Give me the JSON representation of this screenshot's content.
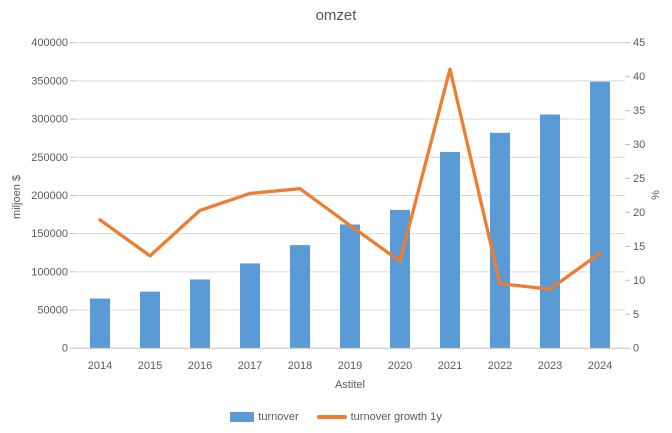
{
  "title": "omzet",
  "chart_data": {
    "type": "bar+line combo",
    "title": "omzet",
    "grid": true,
    "legend_position": "bottom",
    "x_axis": {
      "title": "Astitel",
      "categories": [
        "2014",
        "2015",
        "2016",
        "2017",
        "2018",
        "2019",
        "2020",
        "2021",
        "2022",
        "2023",
        "2024"
      ]
    },
    "left_axis": {
      "title": "miljoen $",
      "min": 0,
      "max": 400000,
      "step": 50000,
      "tick_labels": [
        "400000",
        "350000",
        "300000",
        "250000",
        "200000",
        "150000",
        "100000",
        "50000",
        "0"
      ]
    },
    "right_axis": {
      "title": "%",
      "min": 0,
      "max": 45,
      "step": 5,
      "tick_labels": [
        "45",
        "40",
        "35",
        "30",
        "25",
        "20",
        "15",
        "10",
        "5",
        "0"
      ]
    },
    "series": [
      {
        "name": "turnover",
        "type": "bar",
        "axis": "left",
        "color": "#5B9BD5",
        "values": [
          65000,
          74000,
          90000,
          111000,
          135000,
          162000,
          181000,
          257000,
          282000,
          306000,
          349000
        ]
      },
      {
        "name": "turnover growth 1y",
        "type": "line",
        "axis": "right",
        "color": "#ED7D31",
        "values": [
          18.9,
          13.6,
          20.3,
          22.8,
          23.5,
          18.1,
          12.8,
          41.1,
          9.5,
          8.7,
          14.0
        ]
      }
    ],
    "colors": {
      "bar": "#5B9BD5",
      "line": "#ED7D31",
      "gridline": "#D9D9D9",
      "axis_line": "#BFBFBF",
      "text": "#595959"
    }
  }
}
